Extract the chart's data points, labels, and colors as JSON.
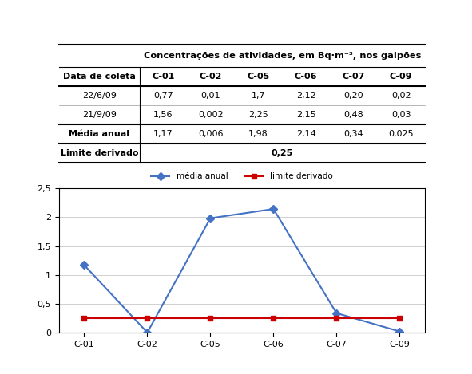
{
  "table": {
    "col_header": [
      "Data de coleta",
      "C-01",
      "C-02",
      "C-05",
      "C-06",
      "C-07",
      "C-09"
    ],
    "main_header": "Concentrações de atividades, em Bq·m⁻³, nos galpões",
    "rows": [
      [
        "22/6/09",
        "0,77",
        "0,01",
        "1,7",
        "2,12",
        "0,20",
        "0,02"
      ],
      [
        "21/9/09",
        "1,56",
        "0,002",
        "2,25",
        "2,15",
        "0,48",
        "0,03"
      ],
      [
        "Média anual",
        "1,17",
        "0,006",
        "1,98",
        "2,14",
        "0,34",
        "0,025"
      ],
      [
        "Limite derivado",
        "",
        "",
        "0,25",
        "",
        "",
        ""
      ]
    ],
    "bold_rows": [
      "Média anual",
      "Limite derivado"
    ],
    "col_widths": [
      0.22,
      0.13,
      0.13,
      0.13,
      0.13,
      0.13,
      0.13
    ]
  },
  "chart": {
    "categories": [
      "C-01",
      "C-02",
      "C-05",
      "C-06",
      "C-07",
      "C-09"
    ],
    "media_anual": [
      1.17,
      0.006,
      1.98,
      2.14,
      0.34,
      0.025
    ],
    "limite_derivado": [
      0.25,
      0.25,
      0.25,
      0.25,
      0.25,
      0.25
    ],
    "line1_color": "#4472C4",
    "line2_color": "#CC0000",
    "line1_label": "média anual",
    "line2_label": "limite derivado",
    "ylim": [
      0,
      2.5
    ],
    "yticks": [
      0,
      0.5,
      1,
      1.5,
      2,
      2.5
    ],
    "ytick_labels": [
      "0",
      "0,5",
      "1",
      "1,5",
      "2",
      "2,5"
    ],
    "chart_bg": "#FFFFFF",
    "grid_color": "#D0D0D0"
  }
}
